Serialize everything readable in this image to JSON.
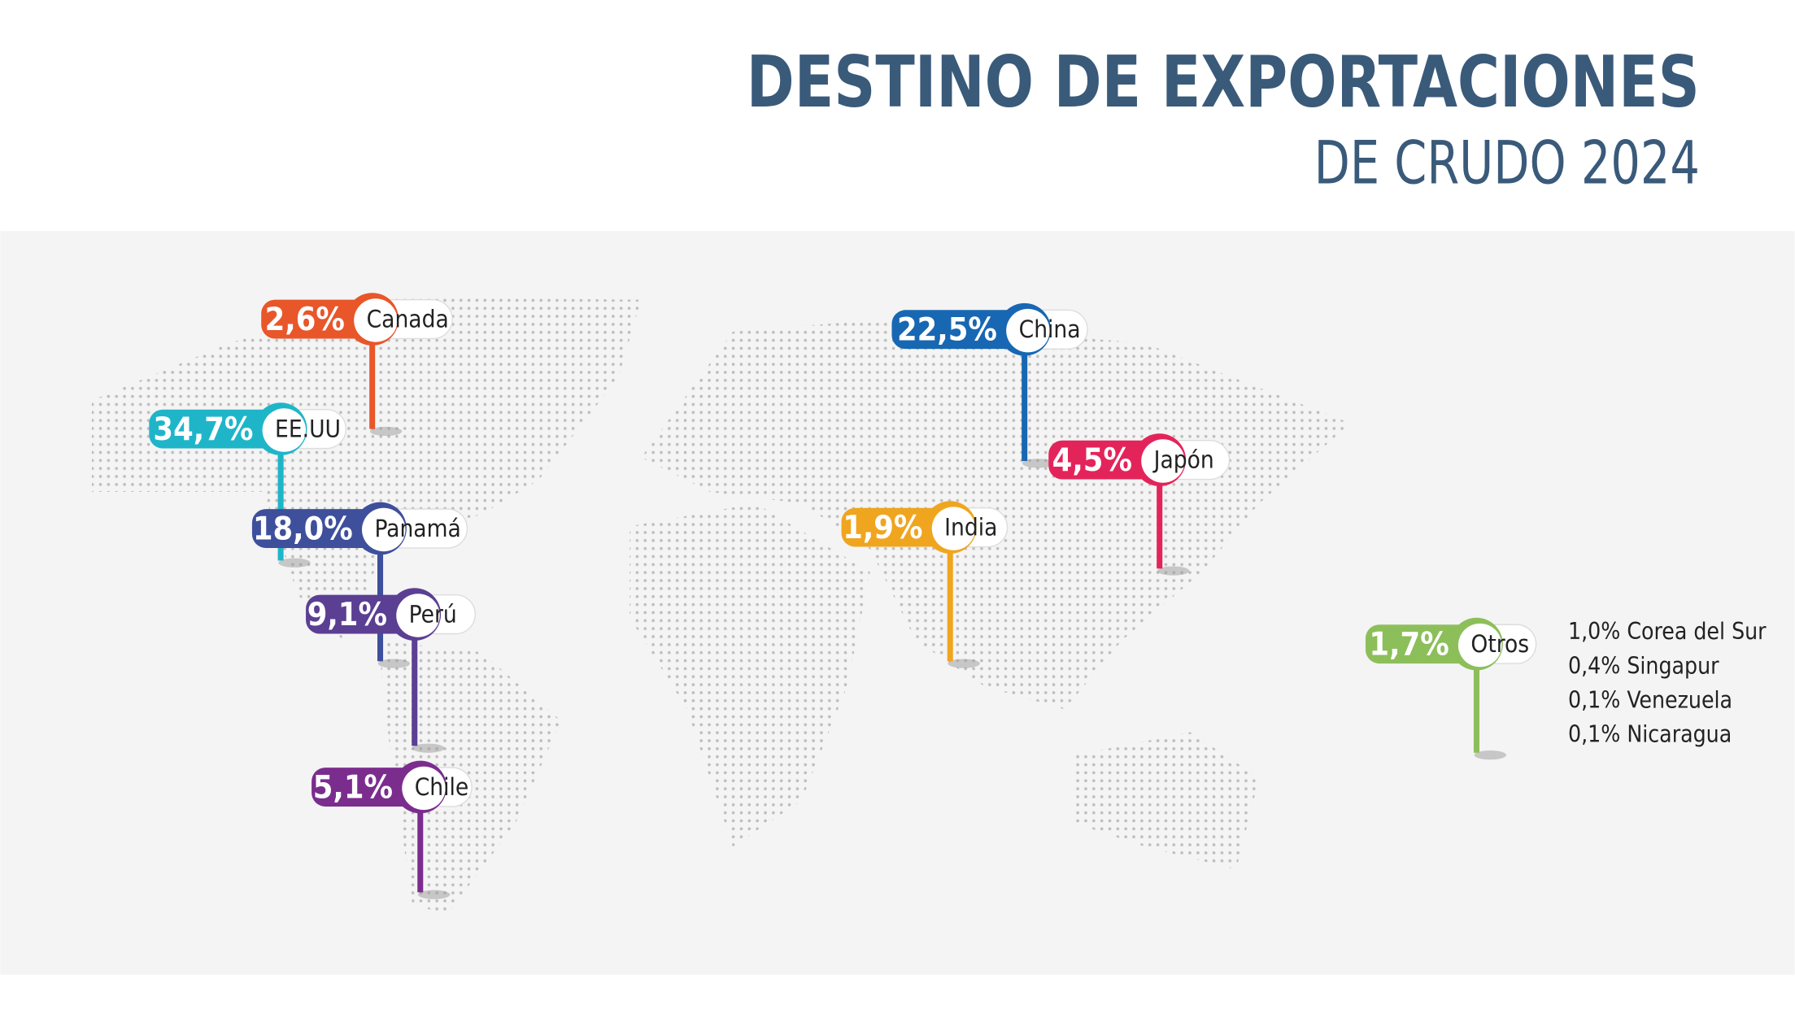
{
  "header": {
    "title": "DESTINO DE EXPORTACIONES",
    "subtitle": "DE CRUDO 2024"
  },
  "pins": [
    {
      "value": "2,6%",
      "label": "Canada",
      "color": "#e8562a"
    },
    {
      "value": "34,7%",
      "label": "EE.UU",
      "color": "#1fb5c9"
    },
    {
      "value": "18,0%",
      "label": "Panamá",
      "color": "#3e4f9c"
    },
    {
      "value": "9,1%",
      "label": "Perú",
      "color": "#5b3f93"
    },
    {
      "value": "5,1%",
      "label": "Chile",
      "color": "#7b2d8e"
    },
    {
      "value": "22,5%",
      "label": "China",
      "color": "#1767b3"
    },
    {
      "value": "4,5%",
      "label": "Japón",
      "color": "#e3245a"
    },
    {
      "value": "1,9%",
      "label": "India",
      "color": "#f0a51f"
    },
    {
      "value": "1,7%",
      "label": "Otros",
      "color": "#8cbf5a"
    }
  ],
  "others": [
    "1,0% Corea del Sur",
    "0,4% Singapur",
    "0,1% Venezuela",
    "0,1% Nicaragua"
  ]
}
